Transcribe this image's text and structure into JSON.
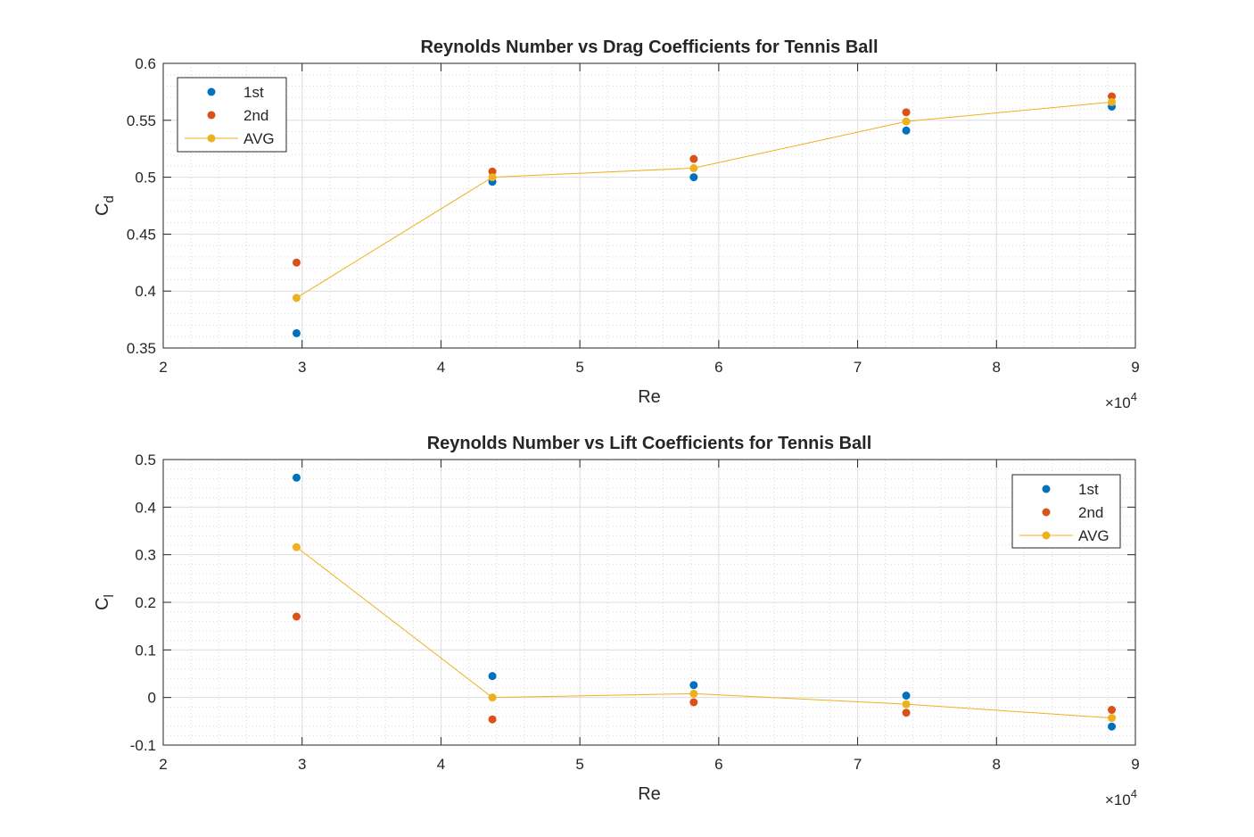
{
  "chart_data": [
    {
      "type": "scatter",
      "title": "Reynolds Number vs Drag Coefficients for Tennis Ball",
      "xlabel": "Re",
      "ylabel_base": "C",
      "ylabel_sub": "d",
      "x_exponent_label": "×10",
      "x_exponent_power": "4",
      "xlim": [
        2,
        9
      ],
      "ylim": [
        0.35,
        0.6
      ],
      "x_ticks": [
        2,
        3,
        4,
        5,
        6,
        7,
        8,
        9
      ],
      "x_tick_labels": [
        "2",
        "3",
        "4",
        "5",
        "6",
        "7",
        "8",
        "9"
      ],
      "y_ticks": [
        0.35,
        0.4,
        0.45,
        0.5,
        0.55,
        0.6
      ],
      "y_tick_labels": [
        "0.35",
        "0.4",
        "0.45",
        "0.5",
        "0.55",
        "0.6"
      ],
      "grid": true,
      "minor_grid": true,
      "legend_position": "top-left",
      "x": [
        2.96,
        4.37,
        5.82,
        7.35,
        8.83
      ],
      "series": [
        {
          "name": "1st",
          "color": "#0072BD",
          "style": "markers",
          "values": [
            0.363,
            0.496,
            0.5,
            0.541,
            0.562
          ]
        },
        {
          "name": "2nd",
          "color": "#D95319",
          "style": "markers",
          "values": [
            0.425,
            0.505,
            0.516,
            0.557,
            0.571
          ]
        },
        {
          "name": "AVG",
          "color": "#EDB120",
          "style": "line-markers",
          "values": [
            0.394,
            0.5,
            0.508,
            0.549,
            0.566
          ]
        }
      ]
    },
    {
      "type": "scatter",
      "title": "Reynolds Number vs Lift Coefficients for Tennis Ball",
      "xlabel": "Re",
      "ylabel_base": "C",
      "ylabel_sub": "l",
      "x_exponent_label": "×10",
      "x_exponent_power": "4",
      "xlim": [
        2,
        9
      ],
      "ylim": [
        -0.1,
        0.5
      ],
      "x_ticks": [
        2,
        3,
        4,
        5,
        6,
        7,
        8,
        9
      ],
      "x_tick_labels": [
        "2",
        "3",
        "4",
        "5",
        "6",
        "7",
        "8",
        "9"
      ],
      "y_ticks": [
        -0.1,
        0,
        0.1,
        0.2,
        0.3,
        0.4,
        0.5
      ],
      "y_tick_labels": [
        "-0.1",
        "0",
        "0.1",
        "0.2",
        "0.3",
        "0.4",
        "0.5"
      ],
      "grid": true,
      "minor_grid": true,
      "legend_position": "top-right",
      "x": [
        2.96,
        4.37,
        5.82,
        7.35,
        8.83
      ],
      "series": [
        {
          "name": "1st",
          "color": "#0072BD",
          "style": "markers",
          "values": [
            0.462,
            0.045,
            0.026,
            0.004,
            -0.061
          ]
        },
        {
          "name": "2nd",
          "color": "#D95319",
          "style": "markers",
          "values": [
            0.17,
            -0.046,
            -0.01,
            -0.032,
            -0.026
          ]
        },
        {
          "name": "AVG",
          "color": "#EDB120",
          "style": "line-markers",
          "values": [
            0.316,
            0.0,
            0.008,
            -0.014,
            -0.043
          ]
        }
      ]
    }
  ]
}
